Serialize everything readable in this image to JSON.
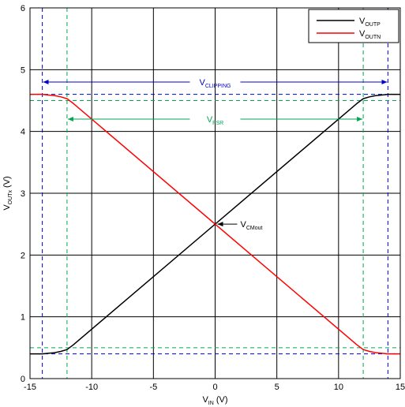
{
  "chart_data": {
    "type": "line",
    "xlabel": {
      "main": "V",
      "sub": "IN",
      "unit": " (V)"
    },
    "ylabel": {
      "main": "V",
      "sub": "OUTx",
      "unit": " (V)"
    },
    "xlim": [
      -15,
      15
    ],
    "ylim": [
      0,
      6
    ],
    "xticks": [
      -15,
      -10,
      -5,
      0,
      5,
      10,
      15
    ],
    "yticks": [
      0,
      1,
      2,
      3,
      4,
      5,
      6
    ],
    "xtick_labels": [
      "-15",
      "-10",
      "-5",
      "0",
      "5",
      "10",
      "15"
    ],
    "ytick_labels": [
      "0",
      "1",
      "2",
      "3",
      "4",
      "5",
      "6"
    ],
    "grid": true,
    "legend_position": "top-right",
    "series": [
      {
        "name_main": "V",
        "name_sub": "OUTP",
        "color": "#000000",
        "x": [
          -15,
          -14,
          -13.5,
          -13,
          -12.5,
          -12,
          -11.8,
          -11.5,
          11.5,
          11.8,
          12,
          12.5,
          13,
          13.5,
          14,
          15
        ],
        "y": [
          0.4,
          0.4,
          0.41,
          0.42,
          0.44,
          0.47,
          0.5,
          0.545,
          4.455,
          4.5,
          4.53,
          4.56,
          4.58,
          4.59,
          4.6,
          4.6
        ]
      },
      {
        "name_main": "V",
        "name_sub": "OUTN",
        "color": "#ff0000",
        "x": [
          -15,
          -14,
          -13.5,
          -13,
          -12.5,
          -12,
          -11.8,
          -11.5,
          11.5,
          11.8,
          12,
          12.5,
          13,
          13.5,
          14,
          15
        ],
        "y": [
          4.6,
          4.6,
          4.59,
          4.58,
          4.56,
          4.53,
          4.5,
          4.455,
          0.545,
          0.5,
          0.47,
          0.44,
          0.42,
          0.41,
          0.4,
          0.4
        ]
      }
    ],
    "reference_lines": {
      "clipping": {
        "color": "#0000cc",
        "x": [
          -14,
          14
        ],
        "y": [
          0.4,
          4.6
        ]
      },
      "fsr": {
        "color": "#00a651",
        "x": [
          -12,
          12
        ],
        "y": [
          0.5,
          4.5
        ]
      }
    },
    "annotations": {
      "clipping": {
        "main": "V",
        "sub": "CLIPPING",
        "y": 4.8,
        "x_from": -14,
        "x_to": 14,
        "color": "#0000cc"
      },
      "fsr": {
        "main": "V",
        "sub": "FSR",
        "y": 4.2,
        "x_from": -12,
        "x_to": 12,
        "color": "#00a651"
      },
      "cmout": {
        "main": "V",
        "sub": "CMout",
        "point": [
          0,
          2.5
        ],
        "color": "#000000"
      }
    }
  }
}
